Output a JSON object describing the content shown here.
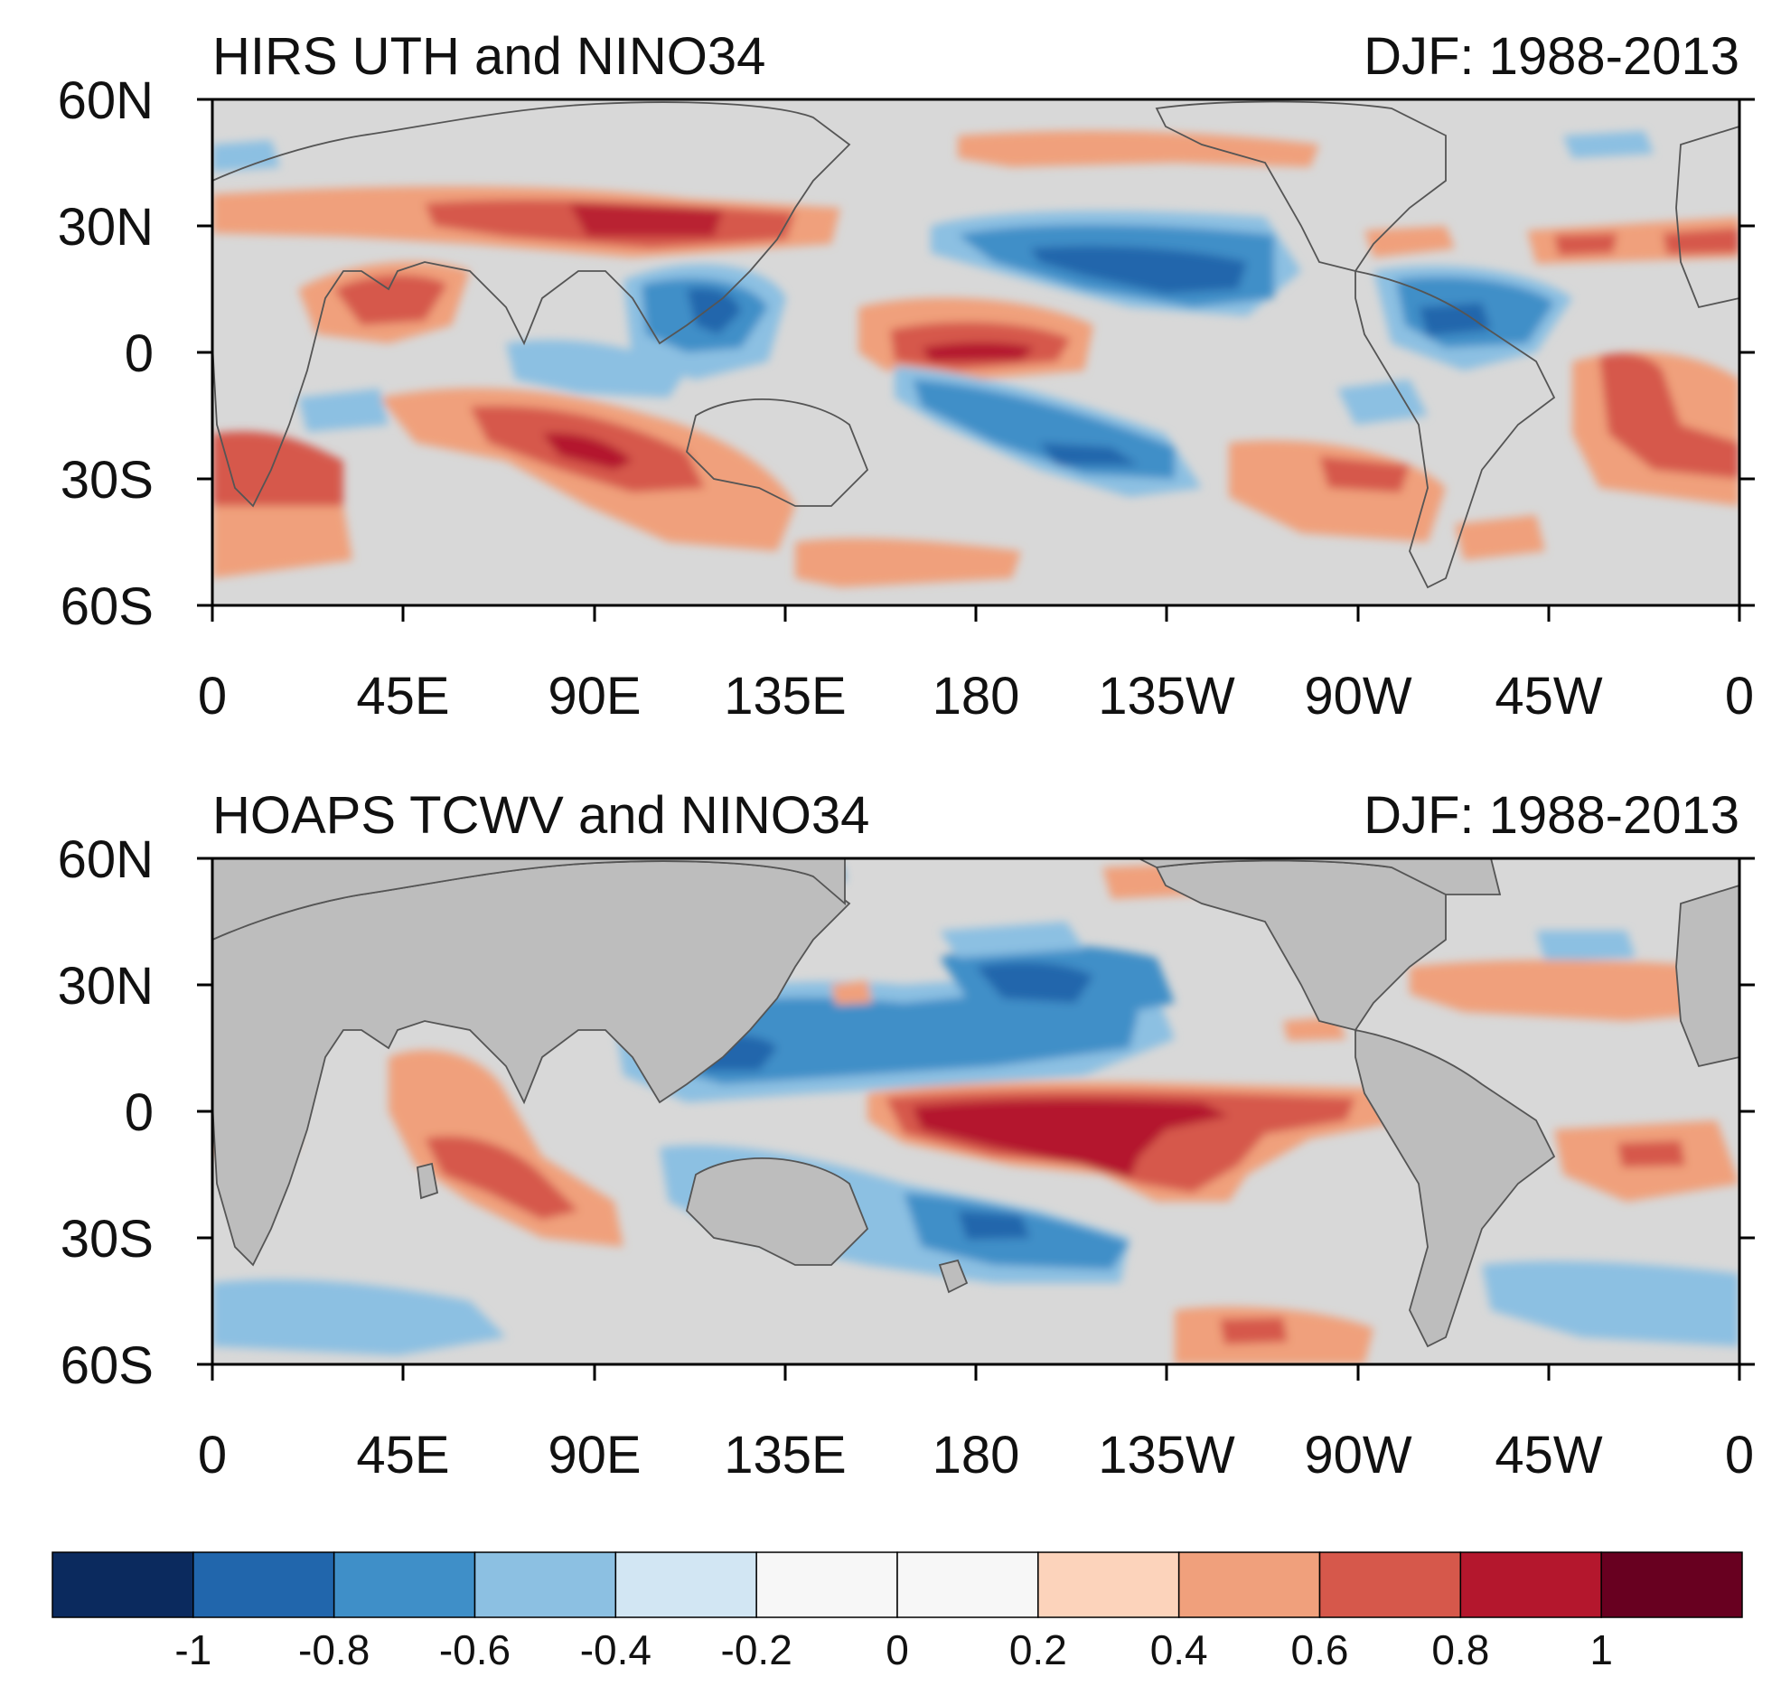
{
  "panels": [
    {
      "id": "uth",
      "title_left": "HIRS UTH and NINO34",
      "title_right": "DJF: 1988-2013",
      "lat_labels": [
        "60N",
        "30N",
        "0",
        "30S",
        "60S"
      ],
      "lon_labels": [
        "0",
        "45E",
        "90E",
        "135E",
        "180",
        "135W",
        "90W",
        "45W",
        "0"
      ]
    },
    {
      "id": "tcwv",
      "title_left": "HOAPS TCWV and NINO34",
      "title_right": "DJF: 1988-2013",
      "lat_labels": [
        "60N",
        "30N",
        "0",
        "30S",
        "60S"
      ],
      "lon_labels": [
        "0",
        "45E",
        "90E",
        "135E",
        "180",
        "135W",
        "90W",
        "45W",
        "0"
      ]
    }
  ],
  "colorbar": {
    "colors": [
      "#0b2a5e",
      "#2166ac",
      "#3f8fc8",
      "#8cc0e2",
      "#d2e6f3",
      "#f7f7f7",
      "#f7f7f7",
      "#fcd3bb",
      "#f0a07c",
      "#d6584b",
      "#b4172d",
      "#680020"
    ],
    "labels": [
      "-1",
      "-0.8",
      "-0.6",
      "-0.4",
      "-0.2",
      "0",
      "0.2",
      "0.4",
      "0.6",
      "0.8",
      "1"
    ]
  },
  "legend_colors": {
    "background_ocean": "#d8d8d8",
    "land_masked": "#bdbdbd",
    "coast_line": "#555555"
  }
}
